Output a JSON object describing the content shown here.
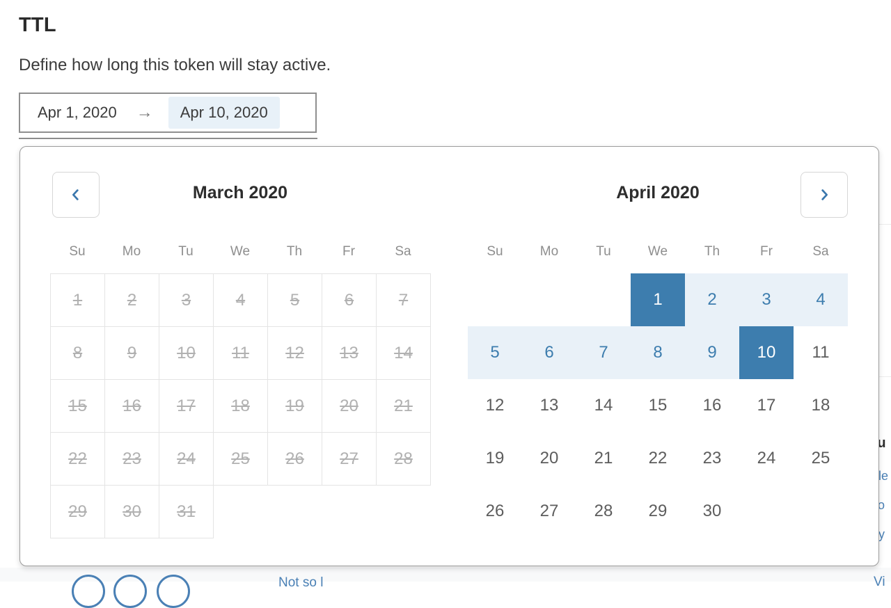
{
  "page": {
    "title": "TTL",
    "description": "Define how long this token will stay active."
  },
  "date_input": {
    "start": "Apr 1, 2020",
    "arrow": "→",
    "end": "Apr 10, 2020"
  },
  "icons": {
    "prev": "chevron-left",
    "next": "chevron-right"
  },
  "calendar": {
    "months": [
      {
        "title": "March 2020",
        "weekdays": [
          "Su",
          "Mo",
          "Tu",
          "We",
          "Th",
          "Fr",
          "Sa"
        ],
        "grid": "bordered",
        "leading_empty": 0,
        "trailing_empty": 4,
        "day_ranges": [
          {
            "from": 1,
            "to": 31,
            "state": "disabled"
          }
        ]
      },
      {
        "title": "April 2020",
        "weekdays": [
          "Su",
          "Mo",
          "Tu",
          "We",
          "Th",
          "Fr",
          "Sa"
        ],
        "grid": "plain",
        "leading_empty": 3,
        "trailing_empty": 2,
        "day_ranges": [
          {
            "from": 1,
            "to": 1,
            "state": "selected"
          },
          {
            "from": 2,
            "to": 9,
            "state": "in-range"
          },
          {
            "from": 10,
            "to": 10,
            "state": "selected"
          },
          {
            "from": 11,
            "to": 30,
            "state": "normal"
          }
        ]
      }
    ],
    "selected_range": {
      "start": "April 1, 2020",
      "end": "April 10, 2020"
    }
  },
  "background_fragments": {
    "heading_fragment": "Su",
    "link_fragment_1": "le",
    "link_fragment_2": "o",
    "link_fragment_3": "y",
    "bottom_link": "Not so l",
    "bottom_right_link": "Vi",
    "circle_count": 3
  },
  "colors": {
    "selected_day_bg": "#3d7dae",
    "in_range_bg": "#e9f1f8",
    "range_text": "#3d7dae",
    "disabled_day": "#b1b1b1",
    "normal_day": "#5d5d5d",
    "weekday_label": "#8e8e8e",
    "grid_border": "#e4e4e4",
    "popup_border": "#9c9c9c",
    "input_border": "#8f8f8f",
    "end_date_highlight": "#e8f1f8",
    "link_blue": "#4a80b5"
  }
}
